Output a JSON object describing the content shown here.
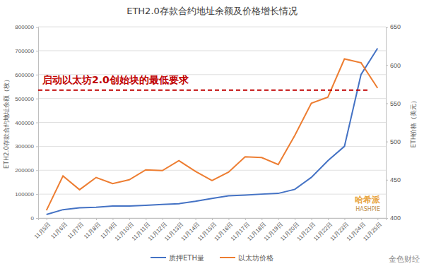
{
  "chart_data": {
    "type": "line",
    "title": "ETH2.0存款合约地址余额及价格增长情况",
    "y_label": "ETH2.0存款合约地址余额（枚）",
    "y2_label": "ETH价格（美元）",
    "categories": [
      "11月5日",
      "11月6日",
      "11月7日",
      "11月8日",
      "11月9日",
      "11月10日",
      "11月11日",
      "11月12日",
      "11月13日",
      "11月14日",
      "11月15日",
      "11月16日",
      "11月17日",
      "11月18日",
      "11月19日",
      "11月20日",
      "11月21日",
      "11月22日",
      "11月23日",
      "11月24日",
      "11月25日"
    ],
    "series": [
      {
        "name": "质押ETH量",
        "color": "#4472c4",
        "axis": "y",
        "values": [
          15000,
          35000,
          43000,
          45000,
          50000,
          50000,
          53000,
          57000,
          60000,
          70000,
          82000,
          93000,
          96000,
          100000,
          103000,
          120000,
          170000,
          240000,
          300000,
          600000,
          710000
        ]
      },
      {
        "name": "以太坊价格",
        "color": "#ed7d31",
        "axis": "y2",
        "values": [
          410,
          455,
          437,
          453,
          445,
          450,
          463,
          462,
          475,
          461,
          449,
          460,
          480,
          479,
          470,
          508,
          550,
          558,
          608,
          603,
          570
        ]
      }
    ],
    "ylim": [
      0,
      800000
    ],
    "yticks": [
      0,
      100000,
      200000,
      300000,
      400000,
      500000,
      600000,
      700000,
      800000
    ],
    "y2lim": [
      400,
      650
    ],
    "y2ticks": [
      400,
      450,
      500,
      550,
      600,
      650
    ],
    "grid": true,
    "legend": "bottom",
    "annotations": [
      {
        "text": "启动以太坊2.0创始块的最低要求",
        "y": 535000,
        "color": "#c00000",
        "line_style": "dashed"
      }
    ],
    "watermarks": [
      "哈希派",
      "HASHPIE",
      "金色财经"
    ]
  }
}
